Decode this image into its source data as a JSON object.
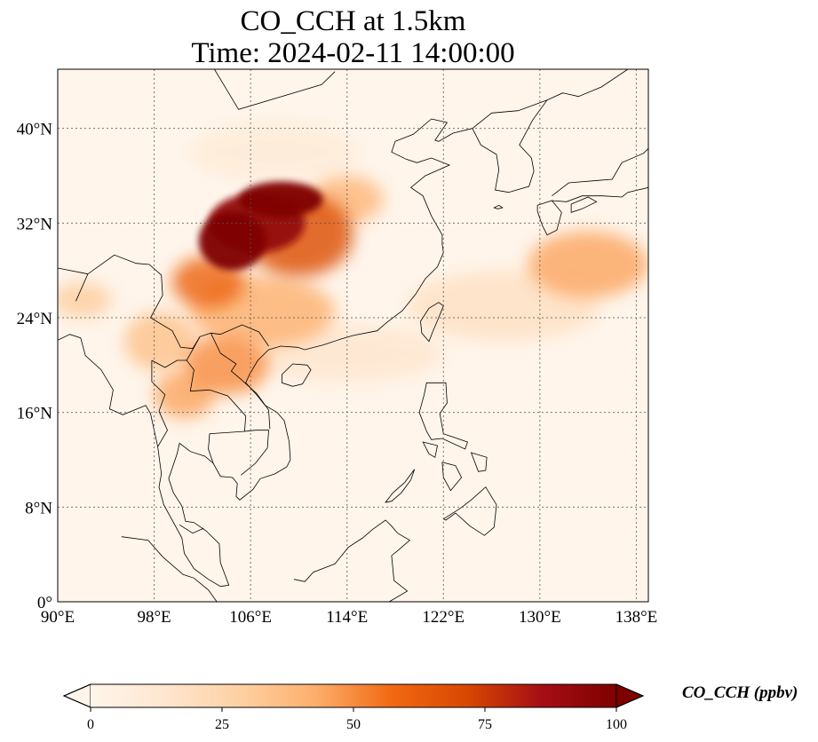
{
  "title": {
    "line1": "CO_CCH at 1.5km",
    "line2": "Time: 2024-02-11 14:00:00"
  },
  "map": {
    "extent": {
      "lon_min": 90,
      "lon_max": 139,
      "lat_min": 0,
      "lat_max": 45
    },
    "lon_ticks": [
      {
        "value": 90,
        "label": "90°E"
      },
      {
        "value": 98,
        "label": "98°E"
      },
      {
        "value": 106,
        "label": "106°E"
      },
      {
        "value": 114,
        "label": "114°E"
      },
      {
        "value": 122,
        "label": "122°E"
      },
      {
        "value": 130,
        "label": "130°E"
      },
      {
        "value": 138,
        "label": "138°E"
      }
    ],
    "lat_ticks": [
      {
        "value": 0,
        "label": "0°"
      },
      {
        "value": 8,
        "label": "8°N"
      },
      {
        "value": 16,
        "label": "16°N"
      },
      {
        "value": 24,
        "label": "24°N"
      },
      {
        "value": 32,
        "label": "32°N"
      },
      {
        "value": 40,
        "label": "40°N"
      }
    ],
    "gridlines": true,
    "background_color": "#fff5eb",
    "coastline_color": "#000000"
  },
  "colorbar": {
    "label": "CO_CCH (ppbv)",
    "min": 0,
    "max": 100,
    "extend": "both",
    "colormap": "OrRd",
    "ticks": [
      {
        "value": 0,
        "label": "0"
      },
      {
        "value": 25,
        "label": "25"
      },
      {
        "value": 50,
        "label": "50"
      },
      {
        "value": 75,
        "label": "75"
      },
      {
        "value": 100,
        "label": "100"
      }
    ],
    "colors": [
      "#fff5eb",
      "#fee6ce",
      "#fdd0a2",
      "#fdae6b",
      "#f16913",
      "#d94801",
      "#a50f15",
      "#7f0000"
    ]
  },
  "plumes": [
    {
      "lon": 104.5,
      "lat": 30.5,
      "rx": 2.8,
      "ry": 2.5,
      "value": 100
    },
    {
      "lon": 108.5,
      "lat": 34.0,
      "rx": 3.5,
      "ry": 1.5,
      "value": 100
    },
    {
      "lon": 106.5,
      "lat": 32.0,
      "rx": 4.0,
      "ry": 2.5,
      "value": 92
    },
    {
      "lon": 110.0,
      "lat": 31.0,
      "rx": 4.5,
      "ry": 3.5,
      "value": 70
    },
    {
      "lon": 102.5,
      "lat": 27.0,
      "rx": 3.0,
      "ry": 2.2,
      "value": 60
    },
    {
      "lon": 107.0,
      "lat": 24.5,
      "rx": 6.0,
      "ry": 3.0,
      "value": 42
    },
    {
      "lon": 104.0,
      "lat": 20.0,
      "rx": 3.5,
      "ry": 2.5,
      "value": 50
    },
    {
      "lon": 100.5,
      "lat": 17.5,
      "rx": 2.5,
      "ry": 2.0,
      "value": 45
    },
    {
      "lon": 98.5,
      "lat": 22.0,
      "rx": 3.0,
      "ry": 2.5,
      "value": 35
    },
    {
      "lon": 92.0,
      "lat": 25.5,
      "rx": 2.5,
      "ry": 1.5,
      "value": 30
    },
    {
      "lon": 114.0,
      "lat": 34.0,
      "rx": 3.0,
      "ry": 2.0,
      "value": 40
    },
    {
      "lon": 134.0,
      "lat": 28.5,
      "rx": 5.0,
      "ry": 2.8,
      "value": 45
    },
    {
      "lon": 127.0,
      "lat": 25.0,
      "rx": 8.0,
      "ry": 3.0,
      "value": 18
    },
    {
      "lon": 114.0,
      "lat": 21.0,
      "rx": 8.0,
      "ry": 2.5,
      "value": 14
    },
    {
      "lon": 108.0,
      "lat": 38.0,
      "rx": 7.0,
      "ry": 2.5,
      "value": 10
    }
  ]
}
